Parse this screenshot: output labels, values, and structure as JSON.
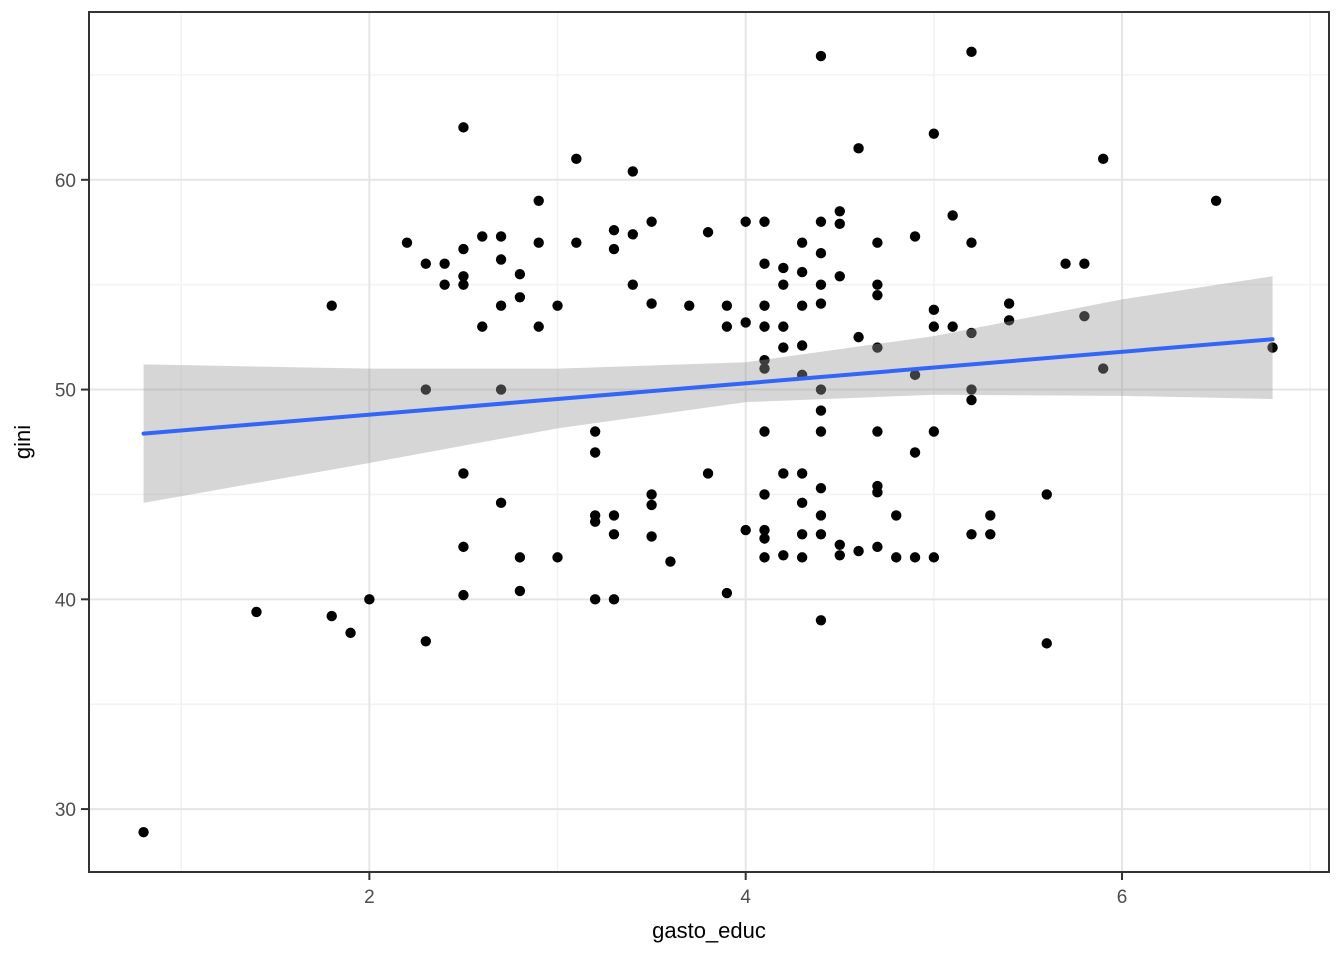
{
  "chart_data": {
    "type": "scatter",
    "title": "",
    "xlabel": "gasto_educ",
    "ylabel": "gini",
    "xlim": [
      0.51,
      7.1
    ],
    "ylim": [
      27.0,
      68.0
    ],
    "x_ticks": [
      2,
      4,
      6
    ],
    "y_ticks": [
      30,
      40,
      50,
      60
    ],
    "x_minor_ticks": [
      1,
      3,
      5,
      7
    ],
    "y_minor_ticks": [
      35,
      45,
      55,
      65
    ],
    "grid": true,
    "legend": "none",
    "colors": {
      "point": "#000000",
      "smooth_line": "#3366F7",
      "confidence_band": "rgba(153,153,153,0.40)",
      "grid_major": "#E5E5E5",
      "grid_minor": "#F2F2F2",
      "panel_border": "#333333",
      "tick_mark": "#333333",
      "tick_label": "#4D4D4D",
      "axis_title": "#000000",
      "background": "#FFFFFF"
    },
    "smooth_line": {
      "x": [
        0.8,
        6.8
      ],
      "y": [
        47.9,
        52.4
      ]
    },
    "confidence_band": {
      "x": [
        0.8,
        2.0,
        3.0,
        4.0,
        5.0,
        6.0,
        6.8
      ],
      "upper": [
        51.2,
        51.0,
        51.0,
        51.3,
        52.55,
        54.3,
        55.4
      ],
      "lower": [
        44.6,
        46.5,
        48.15,
        49.4,
        49.75,
        49.7,
        49.55
      ]
    },
    "points": [
      [
        0.8,
        28.9
      ],
      [
        1.4,
        39.4
      ],
      [
        1.8,
        39.2
      ],
      [
        1.9,
        38.4
      ],
      [
        2.0,
        40.0
      ],
      [
        2.3,
        38.0
      ],
      [
        2.5,
        40.2
      ],
      [
        2.8,
        40.4
      ],
      [
        3.2,
        40.0
      ],
      [
        3.3,
        40.0
      ],
      [
        3.9,
        40.3
      ],
      [
        4.4,
        39.0
      ],
      [
        5.6,
        37.9
      ],
      [
        1.8,
        54.0
      ],
      [
        2.2,
        57.0
      ],
      [
        2.3,
        56.0
      ],
      [
        2.4,
        56.0
      ],
      [
        2.4,
        55.0
      ],
      [
        2.5,
        62.5
      ],
      [
        2.5,
        56.7
      ],
      [
        2.5,
        55.4
      ],
      [
        2.5,
        55.0
      ],
      [
        2.6,
        57.3
      ],
      [
        2.7,
        57.3
      ],
      [
        2.7,
        56.2
      ],
      [
        2.8,
        55.5
      ],
      [
        2.8,
        54.4
      ],
      [
        2.9,
        59.0
      ],
      [
        2.9,
        57.0
      ],
      [
        3.1,
        61.0
      ],
      [
        3.1,
        57.0
      ],
      [
        3.3,
        57.6
      ],
      [
        3.3,
        56.7
      ],
      [
        3.4,
        60.4
      ],
      [
        3.4,
        57.4
      ],
      [
        3.4,
        55.0
      ],
      [
        3.5,
        58.0
      ],
      [
        3.8,
        57.5
      ],
      [
        2.7,
        54.0
      ],
      [
        3.0,
        54.0
      ],
      [
        3.5,
        54.1
      ],
      [
        3.7,
        54.0
      ],
      [
        2.6,
        53.0
      ],
      [
        2.9,
        53.0
      ],
      [
        2.3,
        50.0
      ],
      [
        2.7,
        50.0
      ],
      [
        3.2,
        48.0
      ],
      [
        3.2,
        47.0
      ],
      [
        2.5,
        46.0
      ],
      [
        3.8,
        46.0
      ],
      [
        2.7,
        44.6
      ],
      [
        3.5,
        45.0
      ],
      [
        3.5,
        44.5
      ],
      [
        3.2,
        44.0
      ],
      [
        3.2,
        43.7
      ],
      [
        3.3,
        44.0
      ],
      [
        3.3,
        43.1
      ],
      [
        3.5,
        43.0
      ],
      [
        2.5,
        42.5
      ],
      [
        2.8,
        42.0
      ],
      [
        3.0,
        42.0
      ],
      [
        3.6,
        41.8
      ],
      [
        4.4,
        65.9
      ],
      [
        5.2,
        66.1
      ],
      [
        5.0,
        62.2
      ],
      [
        4.6,
        61.5
      ],
      [
        5.9,
        61.0
      ],
      [
        6.5,
        59.0
      ],
      [
        4.0,
        58.0
      ],
      [
        4.1,
        58.0
      ],
      [
        4.4,
        58.0
      ],
      [
        4.5,
        58.5
      ],
      [
        4.5,
        57.9
      ],
      [
        4.3,
        57.0
      ],
      [
        4.4,
        56.5
      ],
      [
        4.7,
        57.0
      ],
      [
        4.9,
        57.3
      ],
      [
        5.1,
        58.3
      ],
      [
        5.2,
        57.0
      ],
      [
        4.1,
        56.0
      ],
      [
        4.2,
        55.8
      ],
      [
        4.3,
        55.6
      ],
      [
        4.2,
        55.0
      ],
      [
        4.4,
        55.0
      ],
      [
        4.5,
        55.4
      ],
      [
        4.7,
        55.0
      ],
      [
        4.7,
        54.5
      ],
      [
        5.7,
        56.0
      ],
      [
        5.8,
        56.0
      ],
      [
        3.9,
        54.0
      ],
      [
        4.1,
        54.0
      ],
      [
        4.3,
        54.0
      ],
      [
        4.4,
        54.1
      ],
      [
        5.0,
        53.8
      ],
      [
        5.4,
        54.1
      ],
      [
        3.9,
        53.0
      ],
      [
        4.0,
        53.2
      ],
      [
        4.1,
        53.0
      ],
      [
        4.2,
        53.0
      ],
      [
        5.0,
        53.0
      ],
      [
        5.1,
        53.0
      ],
      [
        5.4,
        53.3
      ],
      [
        4.2,
        52.0
      ],
      [
        4.3,
        52.1
      ],
      [
        4.6,
        52.5
      ],
      [
        5.2,
        52.7
      ],
      [
        4.7,
        52.0
      ],
      [
        4.1,
        51.4
      ],
      [
        4.1,
        51.0
      ],
      [
        4.3,
        50.7
      ],
      [
        4.9,
        50.7
      ],
      [
        5.2,
        50.0
      ],
      [
        4.4,
        50.0
      ],
      [
        5.2,
        49.5
      ],
      [
        4.4,
        49.0
      ],
      [
        4.1,
        48.0
      ],
      [
        4.4,
        48.0
      ],
      [
        4.7,
        48.0
      ],
      [
        5.0,
        48.0
      ],
      [
        4.9,
        47.0
      ],
      [
        4.2,
        46.0
      ],
      [
        4.3,
        46.0
      ],
      [
        4.4,
        45.3
      ],
      [
        4.7,
        45.4
      ],
      [
        4.7,
        45.1
      ],
      [
        4.1,
        45.0
      ],
      [
        4.3,
        44.6
      ],
      [
        4.4,
        44.0
      ],
      [
        4.8,
        44.0
      ],
      [
        5.3,
        44.0
      ],
      [
        4.0,
        43.3
      ],
      [
        4.1,
        43.3
      ],
      [
        4.1,
        42.9
      ],
      [
        4.3,
        43.1
      ],
      [
        4.4,
        43.1
      ],
      [
        5.2,
        43.1
      ],
      [
        5.3,
        43.1
      ],
      [
        4.5,
        42.6
      ],
      [
        4.5,
        42.1
      ],
      [
        4.6,
        42.3
      ],
      [
        4.7,
        42.5
      ],
      [
        4.1,
        42.0
      ],
      [
        4.2,
        42.1
      ],
      [
        4.3,
        42.0
      ],
      [
        4.8,
        42.0
      ],
      [
        4.9,
        42.0
      ],
      [
        5.0,
        42.0
      ],
      [
        5.8,
        53.5
      ],
      [
        5.9,
        51.0
      ],
      [
        6.8,
        52.0
      ],
      [
        5.6,
        45.0
      ]
    ]
  }
}
